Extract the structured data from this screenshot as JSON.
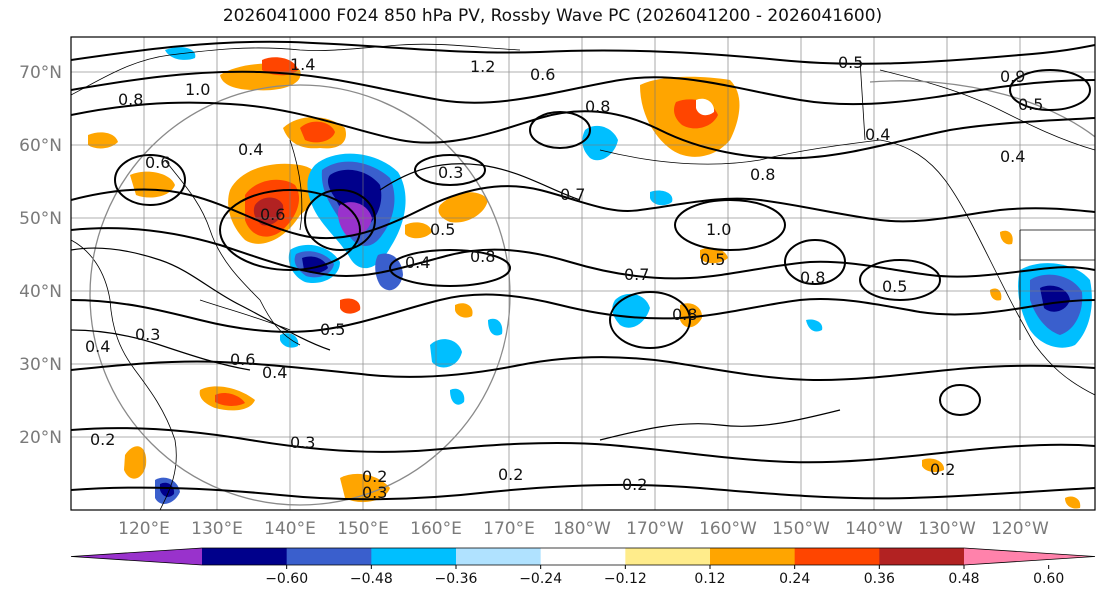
{
  "title": "2026041000 F024 850 hPa PV, Rossby Wave PC (2026041200 - 2026041600)",
  "lat_labels": [
    "70°N",
    "60°N",
    "50°N",
    "40°N",
    "30°N",
    "20°N"
  ],
  "lon_labels": [
    "120°E",
    "130°E",
    "140°E",
    "150°E",
    "160°E",
    "170°E",
    "180°W",
    "170°W",
    "160°W",
    "150°W",
    "140°W",
    "130°W",
    "120°W"
  ],
  "colorbar": {
    "ticks": [
      "−0.60",
      "−0.48",
      "−0.36",
      "−0.24",
      "−0.12",
      "0.12",
      "0.24",
      "0.36",
      "0.48",
      "0.60"
    ],
    "colors": [
      "#9932cc",
      "#00008b",
      "#3a5fcd",
      "#00bfff",
      "#b0e2ff",
      "#ffffff",
      "#ffec8b",
      "#ffa500",
      "#ff4500",
      "#b22222",
      "#ff82ab"
    ]
  },
  "contour_labels": [
    "1.4",
    "1.2",
    "1.0",
    "0.8",
    "0.6",
    "0.4",
    "0.5",
    "0.3",
    "0.6",
    "0.4",
    "0.5",
    "0.8",
    "0.7",
    "1.0",
    "0.8",
    "0.5",
    "0.8",
    "0.7",
    "0.5",
    "0.8",
    "0.4",
    "0.6",
    "0.5",
    "0.4",
    "0.3",
    "0.4",
    "0.3",
    "0.2",
    "0.2",
    "0.3",
    "0.2",
    "0.2",
    "0.2",
    "0.4",
    "0.5",
    "0.6",
    "0.8",
    "0.9"
  ]
}
